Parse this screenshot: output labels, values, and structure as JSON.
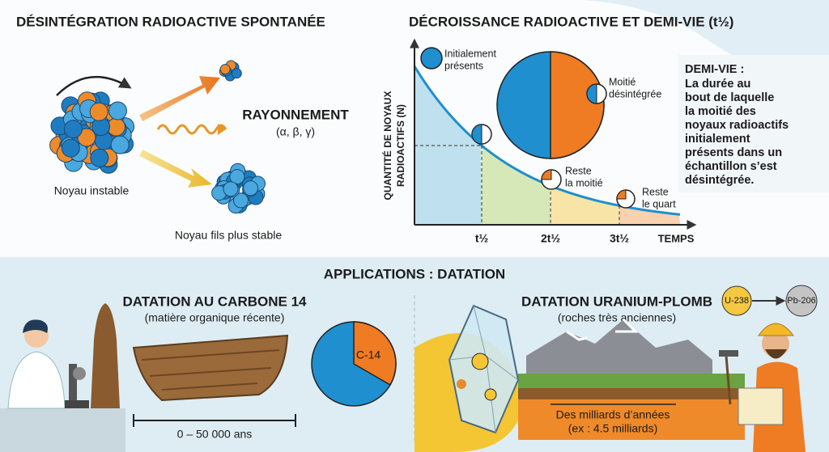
{
  "decay_process": {
    "title": "DÉSINTÉGRATION RADIOACTIVE SPONTANÉE",
    "unstable": "Noyau instable",
    "radiation": "RAYONNEMENT",
    "radiation_types": "(α, β, γ)",
    "stable": "Noyau fils plus stable"
  },
  "half_life_chart": {
    "title": "DÉCROISSANCE RADIOACTIVE ET DEMI-VIE (t½)",
    "y_label": [
      "QUANTITÉ DE NOYAUX",
      "RADIOACTIFS (N)"
    ],
    "x_label": "TEMPS",
    "ticks": [
      "t½",
      "2t½",
      "3t½"
    ],
    "initial": [
      "Initialement",
      "présents"
    ],
    "half_decayed": [
      "Moitié",
      "désintégrée"
    ],
    "half_left": [
      "Reste",
      "la moitié"
    ],
    "quarter_left": [
      "Reste",
      "le quart"
    ]
  },
  "definition": {
    "title": "DEMI-VIE :",
    "lines": [
      "La durée au",
      "bout de laquelle",
      "la moitié des",
      "noyaux radioactifs",
      "initialement",
      "présents dans un",
      "échantillon s’est",
      "désintégrée."
    ]
  },
  "applications": {
    "title": "APPLICATIONS : DATATION",
    "carbon": {
      "title": "DATATION AU CARBONE 14",
      "subtitle": "(matière organique récente)",
      "isotope": "C-14",
      "range": "0 – 50 000 ans"
    },
    "uranium": {
      "title": "DATATION URANIUM-PLOMB",
      "subtitle": "(roches très anciennes)",
      "parent": "U-238",
      "daughter": "Pb-206",
      "range": "Des milliards d’années",
      "example": "(ex : 4.5 milliards)"
    }
  }
}
